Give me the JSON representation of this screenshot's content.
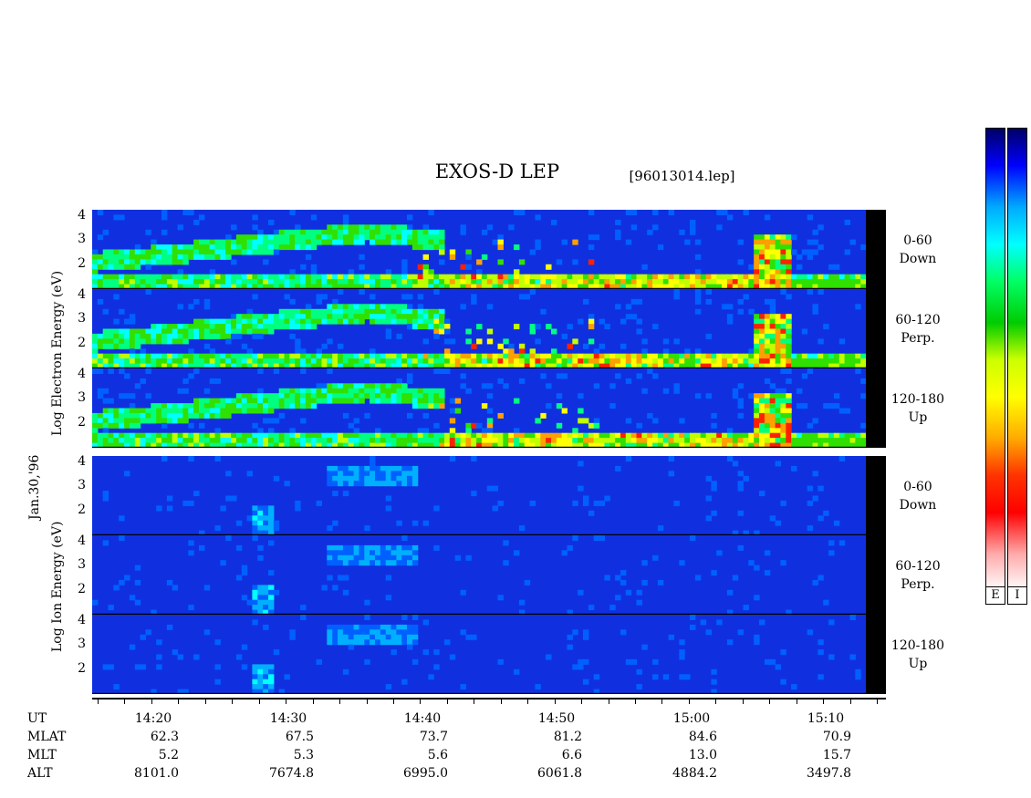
{
  "header": {
    "title": "EXOS-D LEP",
    "file": "[96013014.lep]"
  },
  "date_label": "Jan.30,'96",
  "groups": {
    "electron": {
      "ylabel": "Log  Electron  Energy (eV)"
    },
    "ion": {
      "ylabel": "Log  Ion  Energy (eV)"
    }
  },
  "panels": [
    {
      "group": "electron",
      "angle": "0-60",
      "dir": "Down"
    },
    {
      "group": "electron",
      "angle": "60-120",
      "dir": "Perp."
    },
    {
      "group": "electron",
      "angle": "120-180",
      "dir": "Up"
    },
    {
      "group": "ion",
      "angle": "0-60",
      "dir": "Down"
    },
    {
      "group": "ion",
      "angle": "60-120",
      "dir": "Perp."
    },
    {
      "group": "ion",
      "angle": "120-180",
      "dir": "Up"
    }
  ],
  "yticks": [
    "4",
    "3",
    "2"
  ],
  "table": {
    "headers": [
      "UT",
      "MLAT",
      "MLT",
      "ALT"
    ],
    "columns": [
      {
        "ut": "14:20",
        "mlat": "62.3",
        "mlt": "5.2",
        "alt": "8101.0"
      },
      {
        "ut": "14:30",
        "mlat": "67.5",
        "mlt": "5.3",
        "alt": "7674.8"
      },
      {
        "ut": "14:40",
        "mlat": "73.7",
        "mlt": "5.6",
        "alt": "6995.0"
      },
      {
        "ut": "14:50",
        "mlat": "81.2",
        "mlt": "6.6",
        "alt": "6061.8"
      },
      {
        "ut": "15:00",
        "mlat": "84.6",
        "mlt": "13.0",
        "alt": "4884.2"
      },
      {
        "ut": "15:10",
        "mlat": "70.9",
        "mlt": "15.7",
        "alt": "3497.8"
      }
    ]
  },
  "colorbars": [
    "E",
    "I"
  ],
  "colors": {
    "background_low": "#1030e0",
    "colorbar_stops": [
      "#000066",
      "#0000ff",
      "#00aaff",
      "#00ffff",
      "#00ff66",
      "#00cc00",
      "#ccff00",
      "#ffff00",
      "#ffaa00",
      "#ff3300",
      "#ff0000",
      "#ffaaaa",
      "#ffffff"
    ]
  },
  "chart_data": {
    "type": "heatmap",
    "title": "EXOS-D LEP",
    "xlabel": "UT",
    "x_tick_labels": [
      "14:20",
      "14:30",
      "14:40",
      "14:50",
      "15:00",
      "15:10"
    ],
    "y_tick_labels": [
      "4",
      "3",
      "2"
    ],
    "ylim": [
      1,
      4.2
    ],
    "series": [
      {
        "name": "0-60 Down",
        "species": "Electron"
      },
      {
        "name": "60-120 Perp.",
        "species": "Electron"
      },
      {
        "name": "120-180 Up",
        "species": "Electron"
      },
      {
        "name": "0-60 Down",
        "species": "Ion"
      },
      {
        "name": "60-120 Perp.",
        "species": "Ion"
      },
      {
        "name": "120-180 Up",
        "species": "Ion"
      }
    ]
  }
}
